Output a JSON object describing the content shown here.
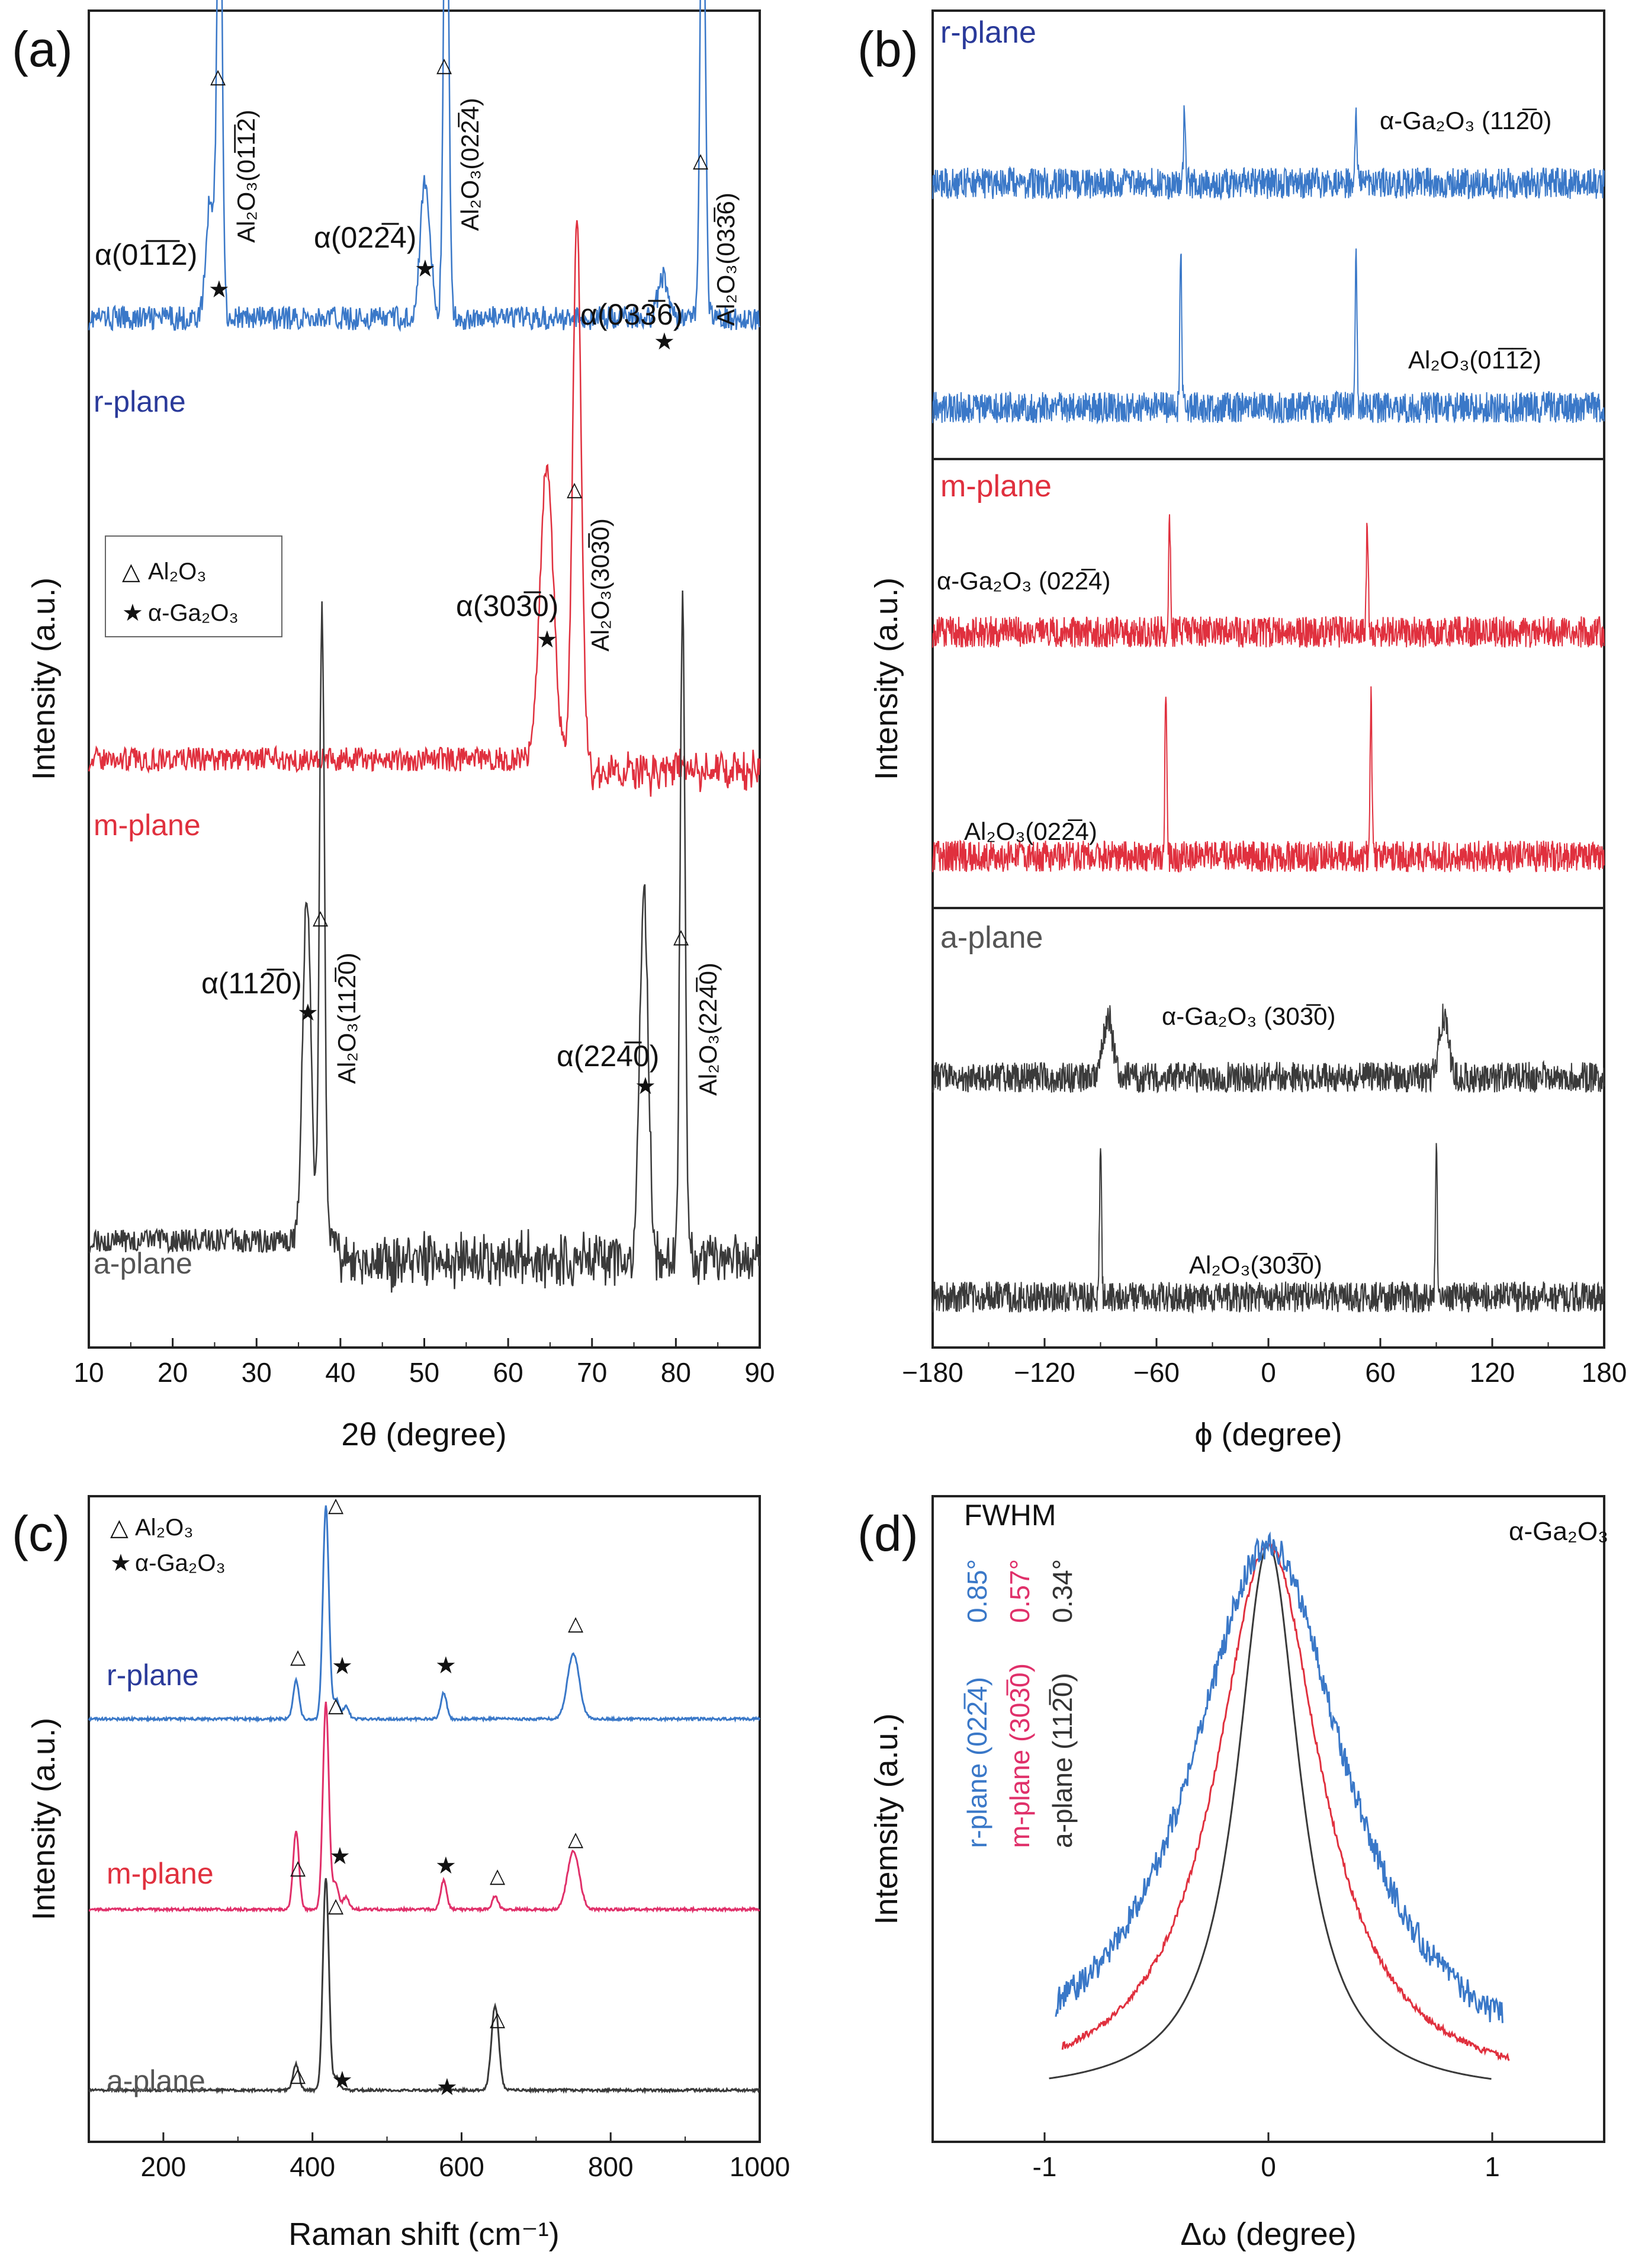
{
  "colors": {
    "blue": "#3a78c8",
    "red": "#e0303e",
    "black": "#3a3a3a",
    "navy": "#2a3a9a",
    "axis": "#222222"
  },
  "panels": {
    "a": {
      "label": "(a)",
      "xlabel": "2θ (degree)",
      "ylabel": "Intensity (a.u.)"
    },
    "b": {
      "label": "(b)",
      "xlabel": "ϕ (degree)",
      "ylabel": "Intensity (a.u.)"
    },
    "c": {
      "label": "(c)",
      "xlabel": "Raman shift (cm⁻¹)",
      "ylabel": "Intensity (a.u.)"
    },
    "d": {
      "label": "(d)",
      "xlabel": "Δω (degree)",
      "ylabel": "Intemsity (a.u.)"
    }
  },
  "chart_data": [
    {
      "id": "a",
      "type": "line",
      "xlim": [
        10,
        90
      ],
      "xticks": [
        10,
        20,
        30,
        40,
        50,
        60,
        70,
        80,
        90
      ],
      "legend": {
        "placement": "middle-left",
        "items": [
          "Al₂O₃",
          "α-Ga₂O₃"
        ]
      },
      "series": [
        {
          "name": "r-plane",
          "color": "blue",
          "base": 0.77,
          "peaks": [
            [
              24.5,
              0.09,
              0.5
            ],
            [
              25.6,
              0.38,
              0.3
            ],
            [
              50.1,
              0.1,
              0.6
            ],
            [
              52.6,
              0.4,
              0.3
            ],
            [
              78.5,
              0.03,
              0.6
            ],
            [
              83.2,
              0.37,
              0.3
            ]
          ]
        },
        {
          "name": "m-plane",
          "color": "red",
          "base": 0.44,
          "peaks": [
            [
              64.6,
              0.22,
              0.8
            ],
            [
              68.2,
              0.4,
              0.5
            ]
          ]
        },
        {
          "name": "a-plane",
          "color": "black",
          "base": 0.08,
          "peaks": [
            [
              36.0,
              0.26,
              0.5
            ],
            [
              37.8,
              0.47,
              0.3
            ],
            [
              76.2,
              0.28,
              0.5
            ],
            [
              80.8,
              0.5,
              0.3
            ]
          ]
        }
      ],
      "annotations": [
        "α(01̅1̅2)",
        "α(022̅4)",
        "α(033̅6)",
        "α(303̅0)",
        "α(112̅0)",
        "α(224̅0)",
        "Al₂O₃(01̅1̅2)",
        "Al₂O₃(022̅4)",
        "Al₂O₃(033̅6)",
        "Al₂O₃(303̅0)",
        "Al₂O₃(112̅0)",
        "Al₂O₃(224̅0)"
      ]
    },
    {
      "id": "b",
      "type": "line",
      "xlim": [
        -180,
        180
      ],
      "xticks": [
        -180,
        -120,
        -60,
        0,
        60,
        120,
        180
      ],
      "xtick_labels": [
        "−180",
        "−120",
        "−60",
        "0",
        "60",
        "120",
        "180"
      ],
      "sections": [
        {
          "name": "r-plane",
          "color": "blue",
          "traces": [
            {
              "label": "α-Ga₂O₃ (112̅0)",
              "peaks": [
                -45,
                47
              ],
              "height": 0.35
            },
            {
              "label": "Al₂O₃(01̅1̅2)",
              "peaks": [
                -47,
                47
              ],
              "height": 0.72
            }
          ]
        },
        {
          "name": "m-plane",
          "color": "red",
          "traces": [
            {
              "label": "α-Ga₂O₃ (022̅4)",
              "peaks": [
                -53,
                53
              ],
              "height": 0.5
            },
            {
              "label": "Al₂O₃(022̅4)",
              "peaks": [
                -55,
                55
              ],
              "height": 0.72
            }
          ]
        },
        {
          "name": "a-plane",
          "color": "black",
          "traces": [
            {
              "label": "α-Ga₂O₃ (303̅0)",
              "peaks": [
                -86,
                94
              ],
              "height": 0.28
            },
            {
              "label": "Al₂O₃(303̅0)",
              "peaks": [
                -90,
                90
              ],
              "height": 0.7
            }
          ]
        }
      ]
    },
    {
      "id": "c",
      "type": "line",
      "xlim": [
        100,
        1000
      ],
      "xticks": [
        200,
        400,
        600,
        800,
        1000
      ],
      "legend": {
        "placement": "top-left",
        "items": [
          "Al₂O₃",
          "α-Ga₂O₃"
        ]
      },
      "series": [
        {
          "name": "r-plane",
          "color": "blue",
          "base": 0.655,
          "peaks": [
            [
              378,
              0.06,
              4
            ],
            [
              418,
              0.33,
              4
            ],
            [
              432,
              0.03,
              4
            ],
            [
              445,
              0.02,
              4
            ],
            [
              576,
              0.04,
              4
            ],
            [
              750,
              0.1,
              8
            ]
          ]
        },
        {
          "name": "m-plane",
          "color": "red",
          "base": 0.36,
          "peaks": [
            [
              378,
              0.12,
              4
            ],
            [
              418,
              0.32,
              4
            ],
            [
              431,
              0.04,
              4
            ],
            [
              445,
              0.02,
              4
            ],
            [
              576,
              0.045,
              4
            ],
            [
              645,
              0.02,
              4
            ],
            [
              750,
              0.09,
              8
            ]
          ]
        },
        {
          "name": "a-plane",
          "color": "black",
          "base": 0.08,
          "peaks": [
            [
              378,
              0.04,
              4
            ],
            [
              418,
              0.33,
              4
            ],
            [
              432,
              0.02,
              4
            ],
            [
              578,
              0.005,
              4
            ],
            [
              645,
              0.13,
              5
            ]
          ]
        }
      ]
    },
    {
      "id": "d",
      "type": "line",
      "xlim": [
        -1.5,
        1.5
      ],
      "xticks": [
        -1,
        0,
        1
      ],
      "title": "α-Ga₂O₃",
      "legend_title": "FWHM",
      "series": [
        {
          "name": "r-plane (022̅4)",
          "fwhm_label": "0.85°",
          "color": "blue",
          "fwhm": 0.85,
          "range": [
            -0.95,
            1.05
          ],
          "noise": 0.025
        },
        {
          "name": "m-plane (303̅0)",
          "fwhm_label": "0.57°",
          "color": "red",
          "fwhm": 0.57,
          "range": [
            -0.92,
            1.08
          ],
          "noise": 0.006
        },
        {
          "name": "a-plane (112̅0)",
          "fwhm_label": "0.34°",
          "color": "black",
          "fwhm": 0.34,
          "range": [
            -0.98,
            1.0
          ],
          "noise": 0
        }
      ]
    }
  ]
}
